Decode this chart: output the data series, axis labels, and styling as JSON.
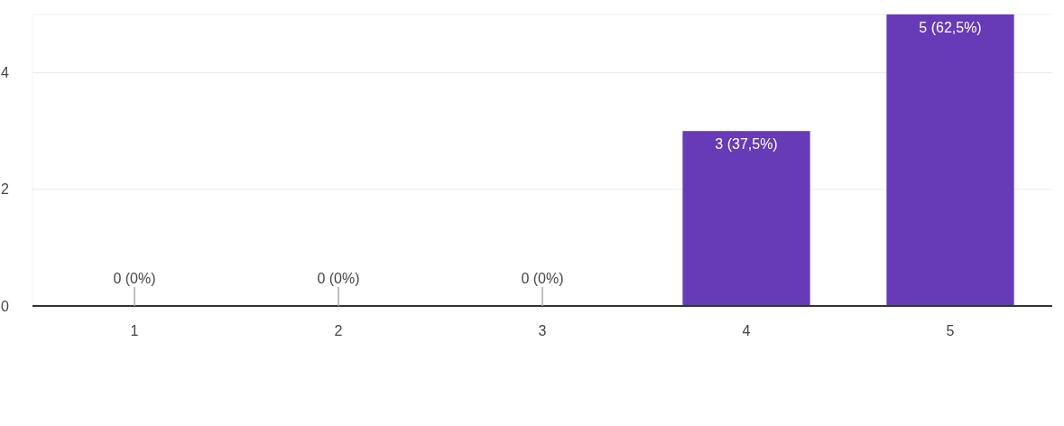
{
  "chart_data": {
    "type": "bar",
    "categories": [
      "1",
      "2",
      "3",
      "4",
      "5"
    ],
    "values": [
      0,
      0,
      0,
      3,
      5
    ],
    "color": "#673ab7",
    "value_labels": [
      "0 (0%)",
      "0 (0%)",
      "0 (0%)",
      "3 (37,5%)",
      "5 (62,5%)"
    ],
    "ylim": [
      0,
      5
    ],
    "yticks": [
      0,
      2,
      4
    ],
    "grid": "y"
  }
}
